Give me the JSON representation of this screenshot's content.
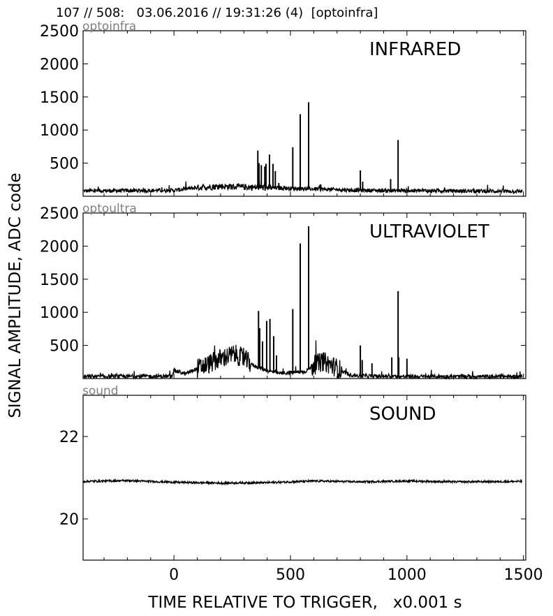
{
  "header": {
    "text": "107 // 508:   03.06.2016 // 19:31:26 (4)  [optoinfra]"
  },
  "ylabel": "SIGNAL AMPLITUDE,  ADC code",
  "xlabel": "TIME RELATIVE TO TRIGGER,   x0.001 s",
  "chart_data": [
    {
      "type": "line",
      "tag": "optoinfra",
      "title": "INFRARED",
      "xlim": [
        -390,
        1510
      ],
      "ylim": [
        0,
        2500
      ],
      "yticks": [
        500,
        1000,
        1500,
        2000,
        2500
      ],
      "baseline": [
        [
          -390,
          80
        ],
        [
          0,
          90
        ],
        [
          100,
          130
        ],
        [
          200,
          150
        ],
        [
          300,
          140
        ],
        [
          400,
          130
        ],
        [
          500,
          120
        ],
        [
          600,
          110
        ],
        [
          700,
          100
        ],
        [
          800,
          90
        ],
        [
          1000,
          85
        ],
        [
          1200,
          80
        ],
        [
          1510,
          75
        ]
      ],
      "spikes": [
        [
          360,
          690
        ],
        [
          365,
          500
        ],
        [
          375,
          470
        ],
        [
          390,
          450
        ],
        [
          395,
          490
        ],
        [
          410,
          630
        ],
        [
          425,
          490
        ],
        [
          435,
          380
        ],
        [
          450,
          200
        ],
        [
          510,
          740
        ],
        [
          542,
          1240
        ],
        [
          578,
          1420
        ],
        [
          630,
          180
        ],
        [
          800,
          390
        ],
        [
          810,
          220
        ],
        [
          930,
          260
        ],
        [
          962,
          850
        ]
      ]
    },
    {
      "type": "line",
      "tag": "optoultra",
      "title": "ULTRAVIOLET",
      "xlim": [
        -390,
        1510
      ],
      "ylim": [
        0,
        2500
      ],
      "yticks": [
        500,
        1000,
        1500,
        2000,
        2500
      ],
      "baseline": [
        [
          -390,
          30
        ],
        [
          -10,
          35
        ],
        [
          0,
          120
        ],
        [
          50,
          70
        ],
        [
          100,
          150
        ],
        [
          150,
          220
        ],
        [
          200,
          300
        ],
        [
          260,
          370
        ],
        [
          300,
          300
        ],
        [
          340,
          200
        ],
        [
          400,
          120
        ],
        [
          450,
          80
        ],
        [
          560,
          100
        ],
        [
          600,
          200
        ],
        [
          640,
          260
        ],
        [
          700,
          160
        ],
        [
          750,
          60
        ],
        [
          800,
          40
        ],
        [
          1000,
          30
        ],
        [
          1510,
          30
        ]
      ],
      "spikes": [
        [
          363,
          1020
        ],
        [
          368,
          760
        ],
        [
          380,
          560
        ],
        [
          398,
          870
        ],
        [
          412,
          900
        ],
        [
          428,
          640
        ],
        [
          440,
          350
        ],
        [
          510,
          1050
        ],
        [
          542,
          2040
        ],
        [
          578,
          2300
        ],
        [
          640,
          380
        ],
        [
          800,
          500
        ],
        [
          808,
          280
        ],
        [
          850,
          230
        ],
        [
          935,
          320
        ],
        [
          965,
          320
        ],
        [
          962,
          1320
        ],
        [
          1000,
          300
        ]
      ]
    },
    {
      "type": "line",
      "tag": "sound",
      "title": "SOUND",
      "xlim": [
        -390,
        1510
      ],
      "ylim": [
        19,
        23
      ],
      "yticks": [
        20,
        22
      ],
      "baseline": [
        [
          -390,
          20.91
        ],
        [
          -200,
          20.93
        ],
        [
          0,
          20.89
        ],
        [
          200,
          20.87
        ],
        [
          400,
          20.88
        ],
        [
          600,
          20.92
        ],
        [
          800,
          20.9
        ],
        [
          1000,
          20.92
        ],
        [
          1200,
          20.9
        ],
        [
          1500,
          20.91
        ]
      ],
      "spikes": []
    }
  ],
  "xticks": [
    0,
    500,
    1000,
    1500
  ],
  "colors": {
    "line": "#000000",
    "tag": "#808080",
    "axes": "#000000"
  }
}
